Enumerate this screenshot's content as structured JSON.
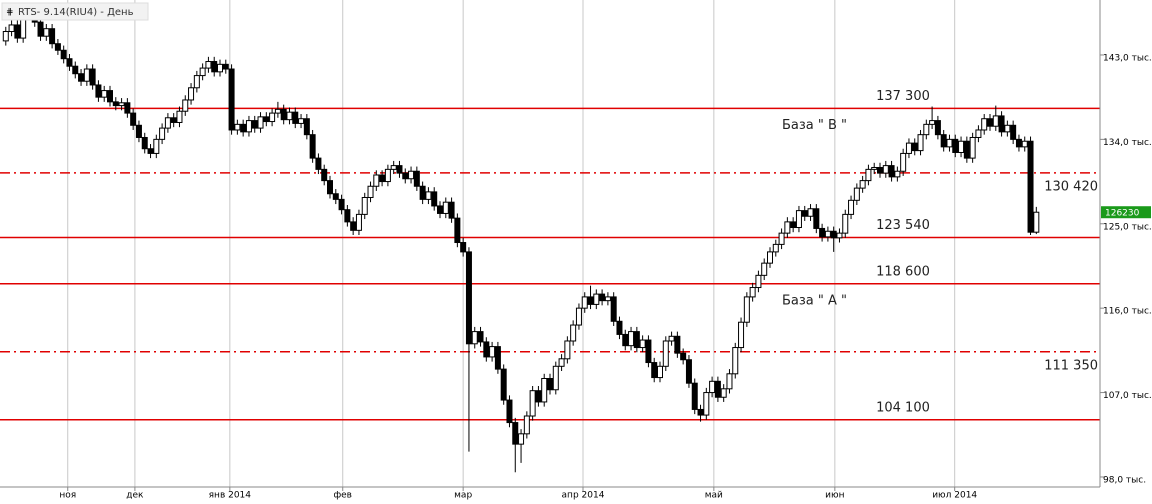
{
  "chart_data": {
    "type": "candlestick",
    "title": "RTS- 9.14(RIU4) - День",
    "xlim": [
      -1,
      189
    ],
    "ylim": [
      96.93,
      148.86
    ],
    "grid": true,
    "xticks": [
      {
        "value": 10.7,
        "label": "ноя"
      },
      {
        "value": 22.3,
        "label": "дек"
      },
      {
        "value": 38.7,
        "label": "янв 2014"
      },
      {
        "value": 58.2,
        "label": "фев"
      },
      {
        "value": 79,
        "label": "мар"
      },
      {
        "value": 99.7,
        "label": "апр 2014"
      },
      {
        "value": 122.3,
        "label": "май"
      },
      {
        "value": 143.2,
        "label": "июн"
      },
      {
        "value": 163.9,
        "label": "июл 2014"
      }
    ],
    "yticks": [
      {
        "value": 98,
        "label": "98,0 тыс."
      },
      {
        "value": 107,
        "label": "107,0 тыс."
      },
      {
        "value": 116,
        "label": "116,0 тыс."
      },
      {
        "value": 125,
        "label": "125,0 тыс."
      },
      {
        "value": 134,
        "label": "134,0 тыс."
      },
      {
        "value": 143,
        "label": "143,0 тыс."
      }
    ],
    "up_color": "#ffffff",
    "down_color": "#000000",
    "level_color": "#e00000",
    "last_price": {
      "value": 126.23,
      "label": "126230"
    },
    "last_price_color": "#1a9a1a",
    "levels": [
      {
        "value": 137.3,
        "label": "137 300",
        "style": "solid",
        "note": "База \" В \""
      },
      {
        "value": 130.42,
        "label": "130 420",
        "style": "dashed"
      },
      {
        "value": 123.54,
        "label": "123 540",
        "style": "solid"
      },
      {
        "value": 118.6,
        "label": "118 600",
        "style": "solid",
        "note": "База \" А \""
      },
      {
        "value": 111.35,
        "label": "111 350",
        "style": "dashed"
      },
      {
        "value": 104.1,
        "label": "104 100",
        "style": "solid"
      }
    ],
    "ohlc": [
      [
        144.5,
        146.0,
        144.0,
        145.5
      ],
      [
        145.5,
        146.7,
        145.0,
        146.2
      ],
      [
        146.2,
        146.7,
        144.3,
        144.8
      ],
      [
        144.8,
        148.0,
        144.3,
        147.5
      ],
      [
        147.5,
        148.5,
        147.0,
        148.0
      ],
      [
        148.0,
        148.5,
        146.0,
        146.5
      ],
      [
        146.5,
        147.0,
        144.5,
        145.0
      ],
      [
        145.0,
        146.3,
        144.5,
        145.8
      ],
      [
        145.8,
        146.3,
        143.7,
        144.2
      ],
      [
        144.2,
        144.7,
        143.0,
        143.5
      ],
      [
        143.5,
        144.0,
        142.1,
        142.6
      ],
      [
        142.6,
        143.1,
        141.3,
        141.8
      ],
      [
        141.8,
        142.3,
        140.5,
        141.0
      ],
      [
        141.0,
        141.5,
        139.7,
        140.2
      ],
      [
        140.2,
        142.0,
        139.7,
        141.5
      ],
      [
        141.5,
        142.0,
        139.3,
        139.8
      ],
      [
        139.8,
        140.3,
        138.0,
        138.5
      ],
      [
        138.5,
        139.7,
        138.0,
        139.2
      ],
      [
        139.2,
        139.7,
        137.5,
        138.0
      ],
      [
        138.0,
        138.5,
        137.1,
        137.6
      ],
      [
        137.6,
        138.4,
        137.1,
        137.9
      ],
      [
        137.9,
        138.4,
        136.3,
        136.8
      ],
      [
        136.8,
        137.3,
        135.0,
        135.5
      ],
      [
        135.5,
        136.0,
        133.7,
        134.2
      ],
      [
        134.2,
        134.7,
        132.5,
        133.0
      ],
      [
        133.0,
        133.5,
        132.0,
        132.5
      ],
      [
        132.5,
        134.5,
        132.0,
        134.0
      ],
      [
        134.0,
        135.7,
        133.5,
        135.2
      ],
      [
        135.2,
        136.8,
        134.7,
        136.3
      ],
      [
        136.3,
        136.8,
        135.3,
        135.8
      ],
      [
        135.8,
        137.5,
        135.3,
        137.0
      ],
      [
        137.0,
        138.7,
        136.5,
        138.2
      ],
      [
        138.2,
        140.0,
        137.7,
        139.5
      ],
      [
        139.5,
        141.3,
        139.0,
        140.8
      ],
      [
        140.8,
        142.1,
        140.3,
        141.6
      ],
      [
        141.6,
        142.8,
        141.1,
        142.3
      ],
      [
        142.3,
        142.8,
        140.7,
        141.2
      ],
      [
        141.2,
        142.5,
        140.7,
        142.0
      ],
      [
        142.0,
        142.5,
        141.0,
        141.5
      ],
      [
        141.5,
        142.0,
        134.5,
        135.0
      ],
      [
        135.0,
        136.1,
        134.5,
        135.6
      ],
      [
        135.6,
        136.1,
        134.3,
        134.8
      ],
      [
        134.8,
        136.5,
        134.3,
        136.0
      ],
      [
        136.0,
        136.5,
        134.7,
        135.2
      ],
      [
        135.2,
        136.9,
        134.7,
        136.4
      ],
      [
        136.4,
        136.9,
        135.4,
        135.9
      ],
      [
        135.9,
        137.3,
        135.4,
        136.8
      ],
      [
        136.8,
        138.0,
        136.3,
        137.2
      ],
      [
        137.2,
        137.7,
        135.6,
        136.1
      ],
      [
        136.1,
        137.4,
        135.6,
        136.9
      ],
      [
        136.9,
        137.4,
        135.2,
        135.7
      ],
      [
        135.7,
        136.7,
        135.2,
        136.2
      ],
      [
        136.2,
        136.7,
        134.0,
        134.5
      ],
      [
        134.5,
        135.0,
        131.5,
        132.0
      ],
      [
        132.0,
        132.5,
        130.3,
        130.8
      ],
      [
        130.8,
        131.3,
        129.1,
        129.6
      ],
      [
        129.6,
        130.1,
        127.7,
        128.2
      ],
      [
        128.2,
        128.7,
        127.1,
        127.6
      ],
      [
        127.6,
        128.1,
        126.0,
        126.5
      ],
      [
        126.5,
        127.0,
        124.7,
        125.2
      ],
      [
        125.2,
        125.7,
        123.8,
        124.3
      ],
      [
        124.3,
        126.5,
        123.8,
        126.0
      ],
      [
        126.0,
        128.3,
        125.5,
        127.8
      ],
      [
        127.8,
        129.5,
        127.3,
        129.0
      ],
      [
        129.0,
        130.7,
        128.5,
        130.2
      ],
      [
        130.2,
        130.7,
        129.0,
        129.5
      ],
      [
        129.5,
        131.3,
        129.0,
        130.8
      ],
      [
        130.8,
        131.7,
        130.3,
        131.2
      ],
      [
        131.2,
        131.7,
        129.9,
        130.4
      ],
      [
        130.4,
        130.9,
        129.3,
        129.8
      ],
      [
        129.8,
        131.1,
        129.3,
        130.6
      ],
      [
        130.6,
        131.1,
        128.5,
        129.0
      ],
      [
        129.0,
        129.5,
        127.1,
        127.6
      ],
      [
        127.6,
        128.9,
        127.1,
        128.4
      ],
      [
        128.4,
        128.9,
        126.4,
        126.9
      ],
      [
        126.9,
        127.4,
        125.6,
        126.1
      ],
      [
        126.1,
        127.8,
        125.6,
        127.3
      ],
      [
        127.3,
        127.8,
        125.1,
        125.6
      ],
      [
        125.6,
        126.1,
        122.5,
        123.0
      ],
      [
        123.0,
        123.5,
        121.5,
        122.0
      ],
      [
        122.0,
        122.5,
        100.7,
        112.2
      ],
      [
        112.2,
        114.0,
        111.7,
        113.5
      ],
      [
        113.5,
        114.0,
        111.9,
        112.4
      ],
      [
        112.4,
        112.9,
        110.3,
        110.8
      ],
      [
        110.8,
        112.4,
        110.3,
        111.9
      ],
      [
        111.9,
        112.4,
        109.0,
        109.5
      ],
      [
        109.5,
        110.0,
        105.7,
        106.2
      ],
      [
        106.2,
        106.7,
        103.3,
        103.8
      ],
      [
        103.8,
        104.3,
        98.5,
        101.5
      ],
      [
        101.5,
        103.1,
        99.5,
        102.6
      ],
      [
        102.6,
        105.0,
        102.1,
        104.5
      ],
      [
        104.5,
        107.7,
        104.0,
        107.2
      ],
      [
        107.2,
        107.7,
        105.5,
        106.0
      ],
      [
        106.0,
        109.0,
        105.5,
        108.5
      ],
      [
        108.5,
        109.0,
        106.8,
        107.3
      ],
      [
        107.3,
        110.3,
        106.8,
        109.8
      ],
      [
        109.8,
        111.1,
        109.3,
        110.6
      ],
      [
        110.6,
        113.0,
        110.1,
        112.5
      ],
      [
        112.5,
        114.7,
        112.0,
        114.2
      ],
      [
        114.2,
        116.5,
        113.7,
        116.0
      ],
      [
        116.0,
        117.7,
        115.5,
        117.2
      ],
      [
        117.2,
        118.4,
        115.9,
        116.4
      ],
      [
        116.4,
        118.0,
        115.9,
        117.5
      ],
      [
        117.5,
        118.0,
        116.3,
        116.8
      ],
      [
        116.8,
        117.7,
        116.3,
        117.2
      ],
      [
        117.2,
        117.7,
        114.1,
        114.6
      ],
      [
        114.6,
        115.1,
        112.7,
        113.2
      ],
      [
        113.2,
        113.7,
        111.5,
        112.0
      ],
      [
        112.0,
        114.0,
        111.5,
        113.5
      ],
      [
        113.5,
        114.0,
        111.3,
        111.8
      ],
      [
        111.8,
        113.1,
        111.3,
        112.6
      ],
      [
        112.6,
        113.1,
        109.7,
        110.2
      ],
      [
        110.2,
        110.7,
        108.1,
        108.6
      ],
      [
        108.6,
        110.3,
        108.1,
        109.8
      ],
      [
        109.8,
        113.0,
        109.3,
        112.5
      ],
      [
        112.5,
        113.5,
        112.0,
        113.0
      ],
      [
        113.0,
        113.5,
        110.7,
        111.2
      ],
      [
        111.2,
        111.7,
        110.0,
        110.5
      ],
      [
        110.5,
        111.0,
        107.5,
        108.0
      ],
      [
        108.0,
        108.5,
        104.7,
        105.2
      ],
      [
        105.2,
        105.7,
        103.9,
        104.6
      ],
      [
        104.6,
        107.5,
        104.1,
        107.0
      ],
      [
        107.0,
        108.7,
        106.5,
        108.2
      ],
      [
        108.2,
        108.7,
        106.0,
        106.5
      ],
      [
        106.5,
        107.9,
        106.0,
        107.4
      ],
      [
        107.4,
        109.5,
        106.9,
        109.0
      ],
      [
        109.0,
        112.3,
        108.5,
        111.8
      ],
      [
        111.8,
        115.0,
        111.3,
        114.5
      ],
      [
        114.5,
        117.7,
        114.0,
        117.2
      ],
      [
        117.2,
        118.7,
        116.7,
        118.2
      ],
      [
        118.2,
        120.0,
        117.7,
        119.5
      ],
      [
        119.5,
        121.3,
        119.0,
        120.8
      ],
      [
        120.8,
        122.5,
        120.3,
        122.0
      ],
      [
        122.0,
        123.3,
        121.5,
        122.8
      ],
      [
        122.8,
        124.5,
        122.3,
        124.0
      ],
      [
        124.0,
        125.7,
        123.5,
        125.2
      ],
      [
        125.2,
        125.7,
        124.1,
        124.6
      ],
      [
        124.6,
        126.9,
        124.1,
        126.4
      ],
      [
        126.4,
        126.9,
        125.3,
        125.8
      ],
      [
        125.8,
        127.1,
        125.3,
        126.6
      ],
      [
        126.6,
        127.1,
        124.0,
        124.5
      ],
      [
        124.5,
        125.0,
        123.1,
        123.6
      ],
      [
        123.6,
        124.7,
        123.1,
        124.2
      ],
      [
        124.2,
        124.7,
        122.0,
        123.5
      ],
      [
        123.5,
        124.5,
        123.0,
        124.0
      ],
      [
        124.0,
        126.5,
        123.5,
        126.0
      ],
      [
        126.0,
        128.0,
        125.5,
        127.5
      ],
      [
        127.5,
        129.3,
        127.0,
        128.8
      ],
      [
        128.8,
        130.1,
        128.3,
        129.6
      ],
      [
        129.6,
        131.3,
        129.1,
        130.8
      ],
      [
        130.8,
        131.5,
        130.3,
        131.0
      ],
      [
        131.0,
        131.5,
        129.9,
        130.4
      ],
      [
        130.4,
        131.7,
        129.9,
        131.2
      ],
      [
        131.2,
        131.7,
        129.5,
        130.0
      ],
      [
        130.0,
        131.1,
        129.5,
        130.6
      ],
      [
        130.6,
        133.0,
        130.1,
        132.5
      ],
      [
        132.5,
        134.1,
        132.0,
        133.6
      ],
      [
        133.6,
        134.1,
        132.3,
        132.8
      ],
      [
        132.8,
        135.0,
        132.3,
        134.5
      ],
      [
        134.5,
        136.1,
        134.0,
        135.6
      ],
      [
        135.6,
        137.5,
        135.1,
        136.0
      ],
      [
        136.0,
        136.5,
        134.0,
        134.5
      ],
      [
        134.5,
        135.0,
        132.7,
        133.2
      ],
      [
        133.2,
        134.5,
        132.7,
        134.0
      ],
      [
        134.0,
        134.5,
        132.1,
        132.6
      ],
      [
        132.6,
        134.3,
        132.1,
        133.8
      ],
      [
        133.8,
        134.3,
        131.5,
        132.0
      ],
      [
        132.0,
        134.7,
        131.5,
        134.2
      ],
      [
        134.2,
        135.5,
        133.7,
        135.0
      ],
      [
        135.0,
        136.7,
        134.5,
        136.2
      ],
      [
        136.2,
        136.7,
        134.9,
        135.4
      ],
      [
        135.4,
        137.6,
        134.9,
        136.5
      ],
      [
        136.5,
        137.0,
        134.3,
        134.8
      ],
      [
        134.8,
        136.0,
        134.3,
        135.5
      ],
      [
        135.5,
        136.0,
        133.5,
        134.0
      ],
      [
        134.0,
        134.5,
        132.7,
        133.2
      ],
      [
        133.2,
        134.3,
        132.7,
        133.8
      ],
      [
        133.8,
        134.3,
        123.8,
        124.1
      ],
      [
        124.1,
        126.8,
        123.9,
        126.23
      ]
    ]
  }
}
